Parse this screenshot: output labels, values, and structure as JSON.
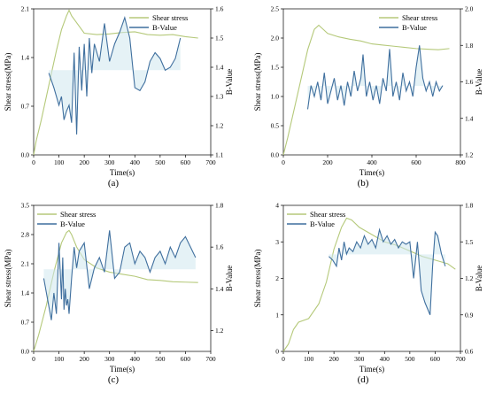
{
  "chart_data": [
    {
      "type": "line",
      "panel_label": "(a)",
      "xlabel": "Time(s)",
      "ylabel": "Shear stress(MPa)",
      "y2label": "B-Value",
      "xlim": [
        0,
        700
      ],
      "xticks": [
        0,
        100,
        200,
        300,
        400,
        500,
        600,
        700
      ],
      "ylim": [
        0,
        2.1
      ],
      "yticks": [
        "0.0",
        "0.7",
        "1.4",
        "2.1"
      ],
      "y2lim": [
        1.1,
        1.6
      ],
      "y2ticks": [
        "1.1",
        "1.2",
        "1.3",
        "1.4",
        "1.5",
        "1.6"
      ],
      "legend_position": "top-right",
      "colors": {
        "shear": "#b5c97a",
        "bvalue": "#3f6f9e"
      },
      "series": [
        {
          "name": "Shear stress",
          "axis": "left",
          "x": [
            0,
            10,
            30,
            60,
            90,
            110,
            130,
            140,
            150,
            170,
            200,
            250,
            300,
            350,
            400,
            450,
            500,
            550,
            600,
            650
          ],
          "y": [
            0,
            0.2,
            0.5,
            1.0,
            1.5,
            1.8,
            2.0,
            2.08,
            2.0,
            1.9,
            1.75,
            1.73,
            1.74,
            1.76,
            1.77,
            1.73,
            1.72,
            1.73,
            1.7,
            1.68
          ]
        },
        {
          "name": "B-Value",
          "axis": "right",
          "x": [
            60,
            80,
            100,
            110,
            120,
            130,
            140,
            150,
            160,
            170,
            180,
            190,
            200,
            210,
            220,
            230,
            240,
            260,
            280,
            300,
            320,
            340,
            360,
            380,
            400,
            420,
            440,
            460,
            480,
            500,
            520,
            540,
            560,
            580
          ],
          "y": [
            1.38,
            1.33,
            1.27,
            1.3,
            1.22,
            1.25,
            1.27,
            1.21,
            1.45,
            1.17,
            1.47,
            1.32,
            1.48,
            1.3,
            1.5,
            1.38,
            1.48,
            1.42,
            1.55,
            1.42,
            1.48,
            1.52,
            1.57,
            1.5,
            1.33,
            1.32,
            1.35,
            1.42,
            1.45,
            1.43,
            1.39,
            1.4,
            1.43,
            1.5
          ]
        }
      ]
    },
    {
      "type": "line",
      "panel_label": "(b)",
      "xlabel": "Time(s)",
      "ylabel": "Shear stress(MPa)",
      "y2label": "B-Value",
      "xlim": [
        0,
        800
      ],
      "xticks": [
        0,
        200,
        400,
        600,
        800
      ],
      "ylim": [
        0,
        2.5
      ],
      "yticks": [
        "0.0",
        "0.5",
        "1.0",
        "1.5",
        "2.0",
        "2.5"
      ],
      "y2lim": [
        1.2,
        2.0
      ],
      "y2ticks": [
        "1.2",
        "1.4",
        "1.6",
        "1.8",
        "2.0"
      ],
      "legend_position": "top-right",
      "colors": {
        "shear": "#b5c97a",
        "bvalue": "#3f6f9e"
      },
      "series": [
        {
          "name": "Shear stress",
          "axis": "left",
          "x": [
            0,
            20,
            50,
            80,
            110,
            140,
            160,
            180,
            200,
            250,
            300,
            350,
            400,
            450,
            500,
            550,
            600,
            650,
            700,
            750
          ],
          "y": [
            0,
            0.3,
            0.8,
            1.3,
            1.8,
            2.15,
            2.22,
            2.15,
            2.08,
            2.02,
            1.98,
            1.95,
            1.9,
            1.88,
            1.86,
            1.84,
            1.82,
            1.81,
            1.8,
            1.82
          ]
        },
        {
          "name": "B-Value",
          "axis": "right",
          "x": [
            110,
            125,
            140,
            155,
            170,
            185,
            200,
            215,
            230,
            245,
            260,
            275,
            290,
            305,
            320,
            335,
            350,
            360,
            375,
            390,
            405,
            420,
            435,
            450,
            465,
            480,
            495,
            510,
            525,
            540,
            555,
            570,
            585,
            600,
            615,
            630,
            645,
            660,
            675,
            690,
            705,
            720
          ],
          "y": [
            1.45,
            1.58,
            1.52,
            1.6,
            1.5,
            1.65,
            1.48,
            1.55,
            1.62,
            1.5,
            1.58,
            1.47,
            1.6,
            1.52,
            1.66,
            1.55,
            1.62,
            1.75,
            1.52,
            1.6,
            1.5,
            1.58,
            1.48,
            1.62,
            1.55,
            1.78,
            1.52,
            1.6,
            1.5,
            1.65,
            1.55,
            1.6,
            1.52,
            1.68,
            1.8,
            1.62,
            1.55,
            1.6,
            1.52,
            1.6,
            1.55,
            1.58
          ]
        }
      ]
    },
    {
      "type": "line",
      "panel_label": "(c)",
      "xlabel": "Time(s)",
      "ylabel": "Shear stress(MPa)",
      "y2label": "B-Value",
      "xlim": [
        0,
        700
      ],
      "xticks": [
        0,
        100,
        200,
        300,
        400,
        500,
        600,
        700
      ],
      "ylim": [
        0,
        3.5
      ],
      "yticks": [
        "0.0",
        "0.7",
        "1.4",
        "2.1",
        "2.8",
        "3.5"
      ],
      "y2lim": [
        1.1,
        1.8
      ],
      "y2ticks": [
        "1.2",
        "1.4",
        "1.6",
        "1.8"
      ],
      "legend_position": "top-left",
      "colors": {
        "shear": "#b5c97a",
        "bvalue": "#3f6f9e"
      },
      "series": [
        {
          "name": "Shear stress",
          "axis": "left",
          "x": [
            0,
            20,
            50,
            80,
            110,
            130,
            140,
            150,
            170,
            200,
            250,
            300,
            350,
            400,
            450,
            500,
            550,
            600,
            650
          ],
          "y": [
            0,
            0.4,
            1.1,
            1.9,
            2.6,
            2.85,
            2.9,
            2.8,
            2.5,
            2.2,
            2.0,
            1.9,
            1.85,
            1.8,
            1.72,
            1.7,
            1.67,
            1.66,
            1.65
          ]
        },
        {
          "name": "B-Value",
          "axis": "right",
          "x": [
            40,
            55,
            70,
            80,
            90,
            100,
            110,
            115,
            120,
            125,
            130,
            135,
            140,
            150,
            160,
            170,
            180,
            200,
            220,
            240,
            260,
            280,
            300,
            320,
            340,
            360,
            380,
            400,
            420,
            440,
            460,
            480,
            500,
            520,
            540,
            560,
            580,
            600,
            620,
            640
          ],
          "y": [
            1.45,
            1.35,
            1.25,
            1.38,
            1.28,
            1.62,
            1.35,
            1.55,
            1.3,
            1.4,
            1.32,
            1.35,
            1.28,
            1.45,
            1.6,
            1.5,
            1.58,
            1.62,
            1.4,
            1.5,
            1.55,
            1.48,
            1.68,
            1.45,
            1.48,
            1.6,
            1.62,
            1.52,
            1.58,
            1.55,
            1.48,
            1.55,
            1.58,
            1.52,
            1.6,
            1.55,
            1.62,
            1.65,
            1.6,
            1.55
          ]
        }
      ]
    },
    {
      "type": "line",
      "panel_label": "(d)",
      "xlabel": "Time(s)",
      "ylabel": "Shear stress(MPa)",
      "y2label": "B-Value",
      "xlim": [
        0,
        700
      ],
      "xticks": [
        0,
        100,
        200,
        300,
        400,
        500,
        600,
        700
      ],
      "ylim": [
        0,
        4
      ],
      "yticks": [
        "0",
        "1",
        "2",
        "3",
        "4"
      ],
      "y2lim": [
        0.6,
        1.8
      ],
      "y2ticks": [
        "0.6",
        "0.9",
        "1.2",
        "1.5",
        "1.8"
      ],
      "legend_position": "top-left",
      "colors": {
        "shear": "#b5c97a",
        "bvalue": "#3f6f9e"
      },
      "series": [
        {
          "name": "Shear stress",
          "axis": "left",
          "x": [
            0,
            20,
            40,
            60,
            100,
            140,
            170,
            200,
            230,
            250,
            270,
            300,
            350,
            400,
            450,
            500,
            550,
            600,
            650,
            680
          ],
          "y": [
            0,
            0.2,
            0.6,
            0.8,
            0.9,
            1.3,
            1.9,
            2.8,
            3.4,
            3.65,
            3.6,
            3.4,
            3.2,
            3.0,
            2.9,
            2.75,
            2.6,
            2.5,
            2.4,
            2.25
          ]
        },
        {
          "name": "B-Value",
          "axis": "right",
          "x": [
            180,
            195,
            210,
            220,
            230,
            240,
            250,
            260,
            275,
            290,
            305,
            320,
            335,
            350,
            365,
            380,
            395,
            410,
            425,
            440,
            455,
            470,
            485,
            500,
            515,
            530,
            545,
            560,
            570,
            580,
            590,
            600,
            610,
            625,
            640
          ],
          "y": [
            1.38,
            1.35,
            1.3,
            1.45,
            1.35,
            1.5,
            1.4,
            1.45,
            1.42,
            1.5,
            1.45,
            1.55,
            1.48,
            1.52,
            1.45,
            1.6,
            1.5,
            1.55,
            1.48,
            1.52,
            1.45,
            1.5,
            1.48,
            1.5,
            1.2,
            1.5,
            1.1,
            1.0,
            0.95,
            0.9,
            1.3,
            1.58,
            1.55,
            1.4,
            1.3
          ]
        }
      ]
    }
  ]
}
